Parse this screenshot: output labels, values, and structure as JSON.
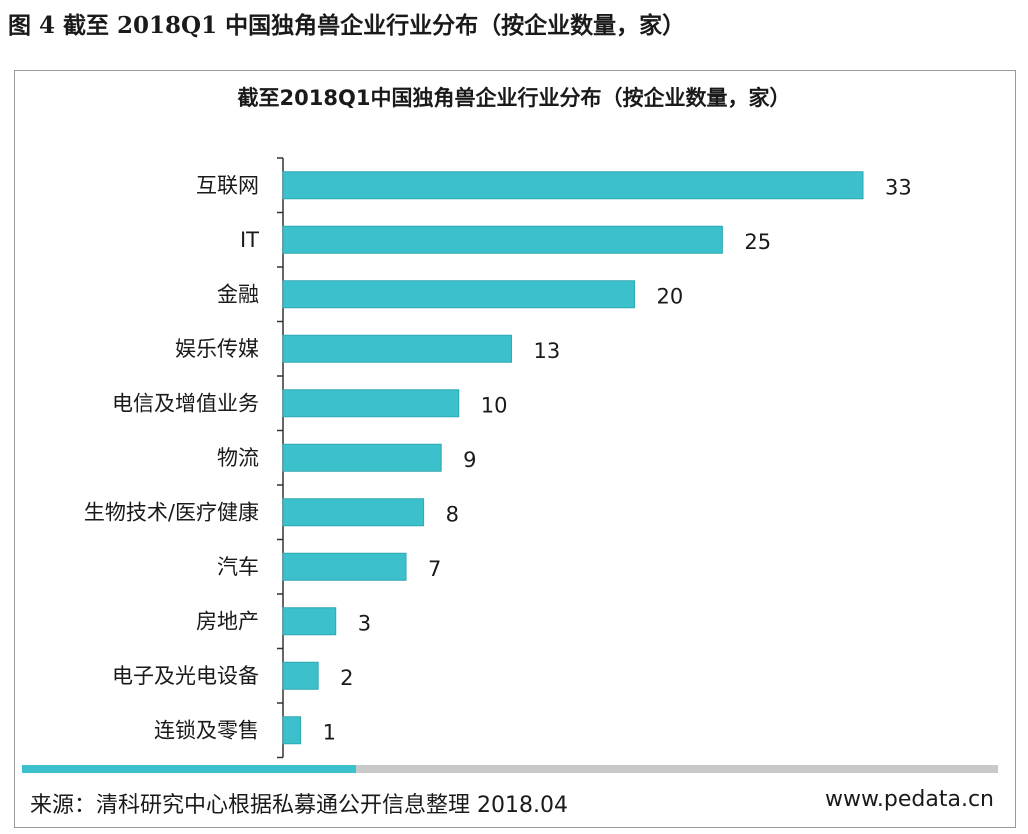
{
  "figure_caption": "图 4 截至 2018Q1 中国独角兽企业行业分布（按企业数量，家）",
  "footer": {
    "source": "来源：清科研究中心根据私募通公开信息整理  2018.04",
    "site": "www.pedata.cn"
  },
  "colors": {
    "bar": "#3cc1cc",
    "divider": "#c9c9c9",
    "accent": "#3cc1cc"
  },
  "chart_data": {
    "type": "bar",
    "orientation": "horizontal",
    "title": "截至2018Q1中国独角兽企业行业分布（按企业数量，家）",
    "categories": [
      "互联网",
      "IT",
      "金融",
      "娱乐传媒",
      "电信及增值业务",
      "物流",
      "生物技术/医疗健康",
      "汽车",
      "房地产",
      "电子及光电设备",
      "连锁及零售"
    ],
    "values": [
      33,
      25,
      20,
      13,
      10,
      9,
      8,
      7,
      3,
      2,
      1
    ],
    "xlim": [
      0,
      33
    ],
    "data_labels": true,
    "grid": false,
    "legend": false
  }
}
